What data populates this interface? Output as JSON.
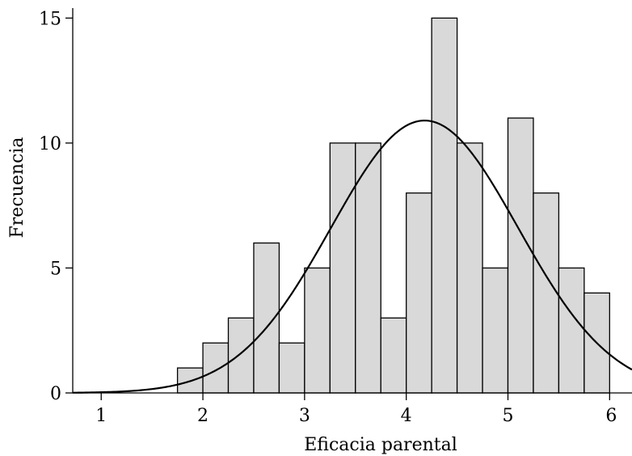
{
  "chart_data": {
    "type": "bar",
    "subtype": "histogram",
    "xlabel": "Eficacia parental",
    "ylabel": "Frecuencia",
    "xlim": [
      0.72,
      6.22
    ],
    "ylim": [
      0,
      15.4
    ],
    "xticks": [
      1,
      2,
      3,
      4,
      5,
      6
    ],
    "yticks": [
      0,
      5,
      10,
      15
    ],
    "bin_width": 0.25,
    "bins": [
      {
        "start": 1.75,
        "value": 1
      },
      {
        "start": 2.0,
        "value": 2
      },
      {
        "start": 2.25,
        "value": 3
      },
      {
        "start": 2.5,
        "value": 6
      },
      {
        "start": 2.75,
        "value": 2
      },
      {
        "start": 3.0,
        "value": 5
      },
      {
        "start": 3.25,
        "value": 10
      },
      {
        "start": 3.5,
        "value": 10
      },
      {
        "start": 3.75,
        "value": 3
      },
      {
        "start": 4.0,
        "value": 8
      },
      {
        "start": 4.25,
        "value": 15
      },
      {
        "start": 4.5,
        "value": 10
      },
      {
        "start": 4.75,
        "value": 5
      },
      {
        "start": 5.0,
        "value": 11
      },
      {
        "start": 5.25,
        "value": 8
      },
      {
        "start": 5.5,
        "value": 5
      },
      {
        "start": 5.75,
        "value": 4
      }
    ],
    "normal_curve": {
      "mean": 4.18,
      "sd": 0.92,
      "peak": 10.9
    },
    "bar_color": "#d9d9d9",
    "grid": false,
    "legend": "none"
  }
}
